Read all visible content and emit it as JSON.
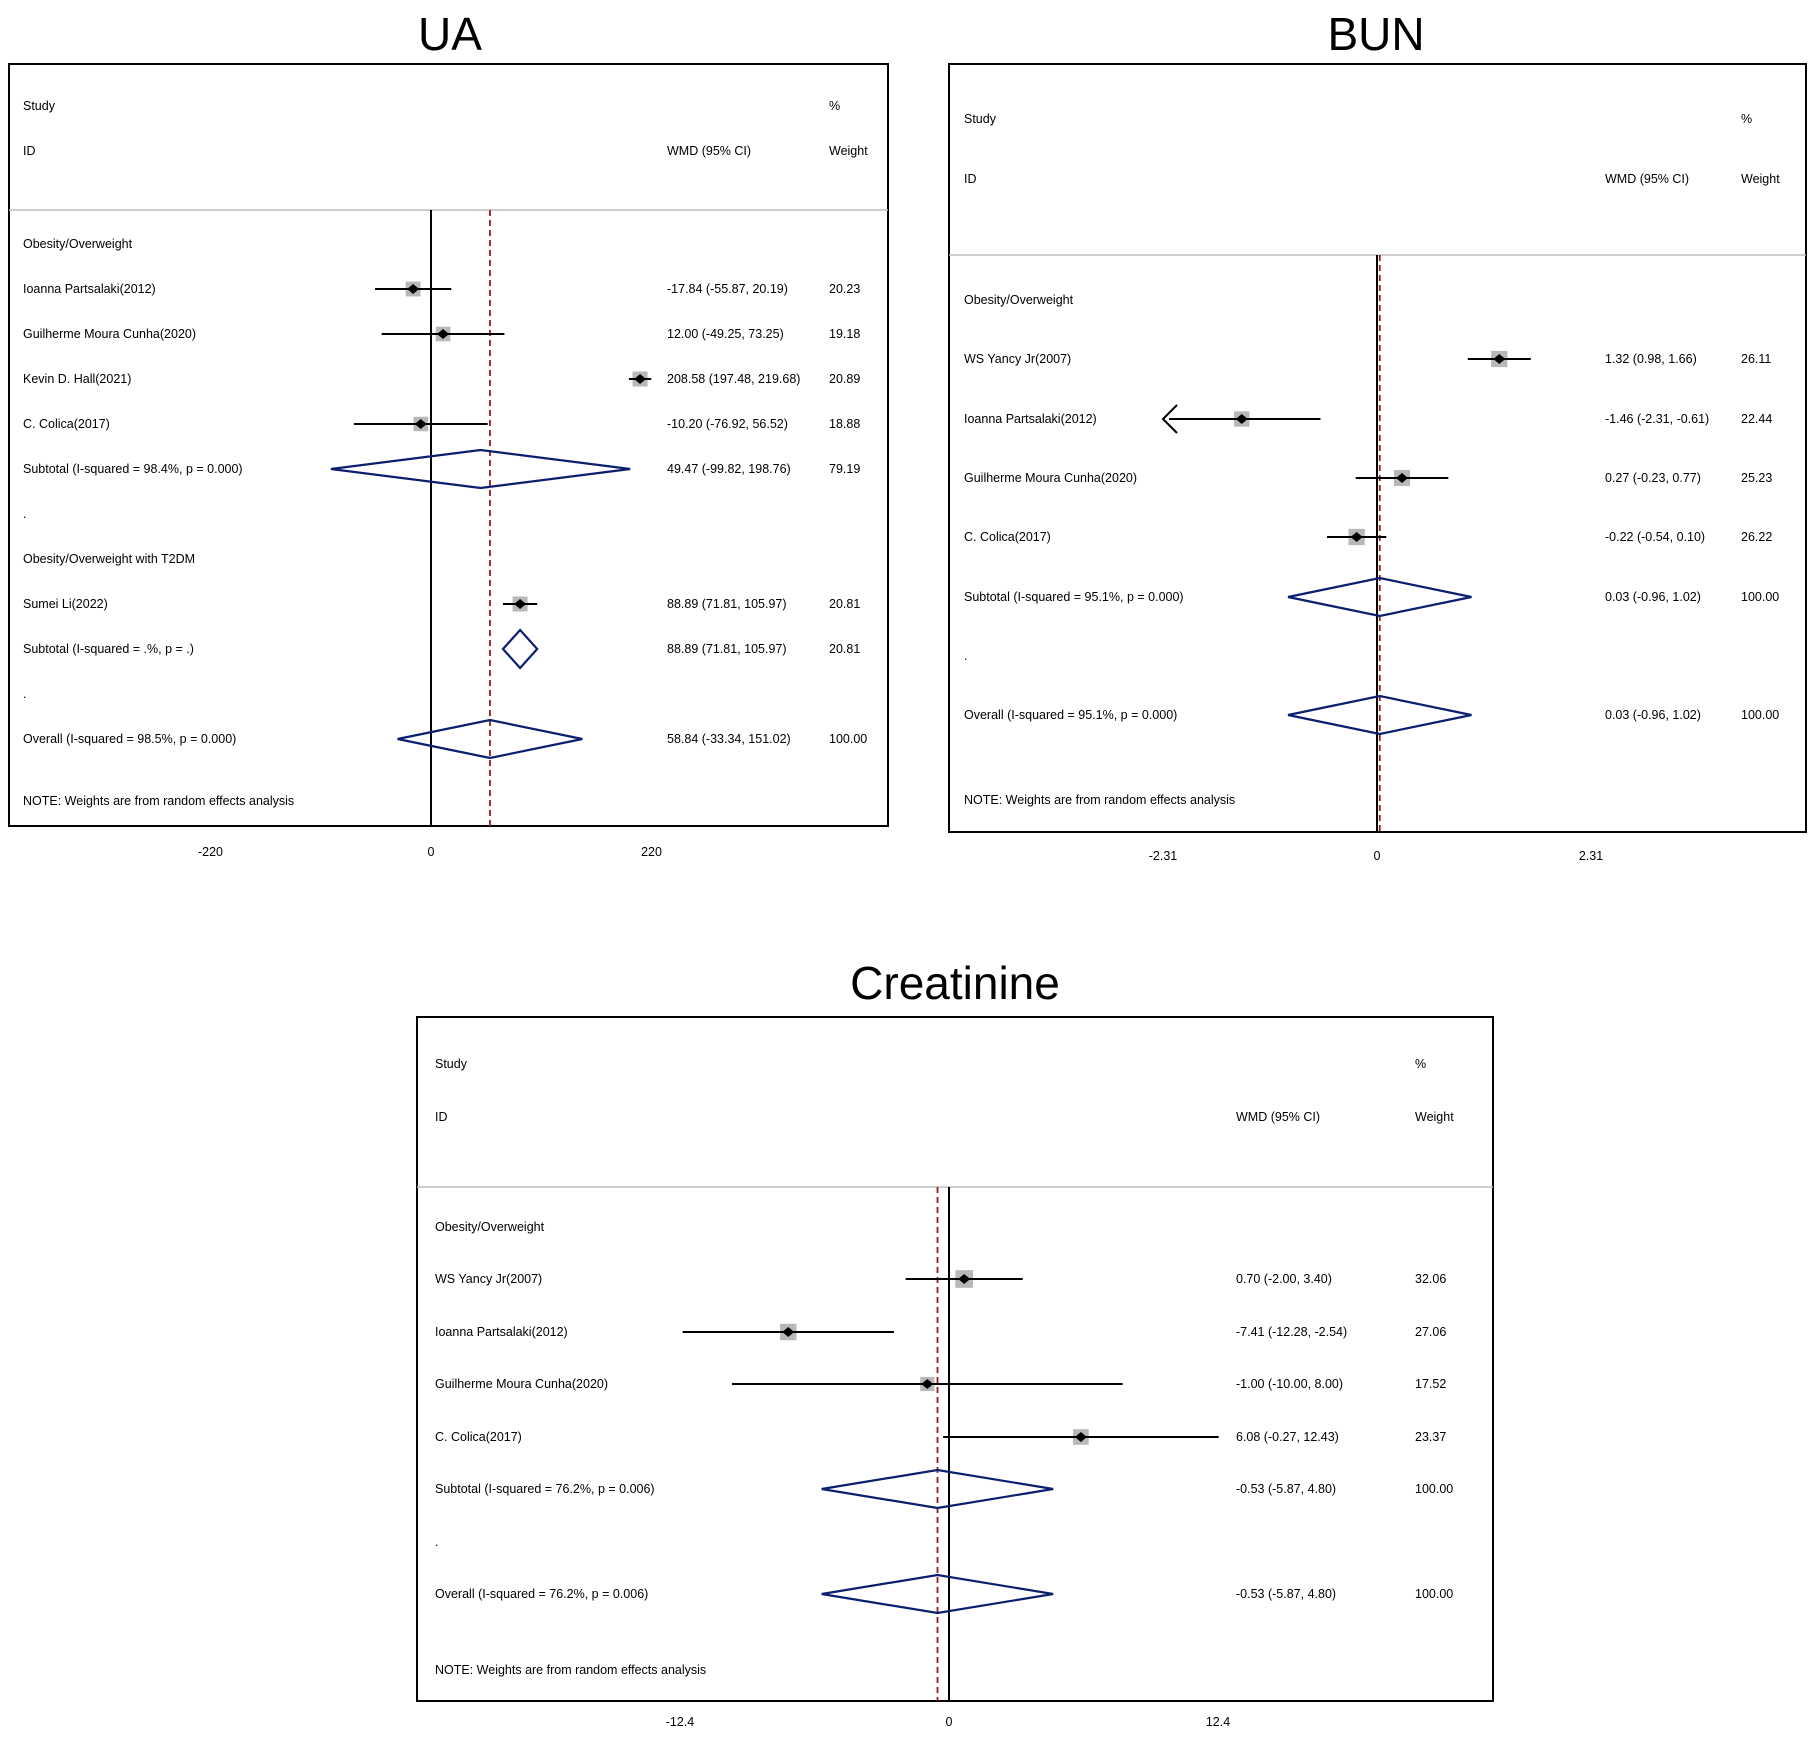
{
  "chart_data": [
    {
      "type": "forest",
      "title": "UA",
      "header": {
        "study": "Study",
        "id": "ID",
        "effect": "WMD (95% CI)",
        "pct": "%",
        "weight": "Weight"
      },
      "ticks": [
        -220,
        0,
        220
      ],
      "tick_labels": [
        "-220",
        "0",
        "220"
      ],
      "overall_effect": 58.84,
      "rows": [
        {
          "kind": "group",
          "label": "Obesity/Overweight"
        },
        {
          "kind": "study",
          "label": "Ioanna   Partsalaki(2012)",
          "est": -17.84,
          "lo": -55.87,
          "hi": 20.19,
          "ci": "-17.84 (-55.87, 20.19)",
          "weight": "20.23"
        },
        {
          "kind": "study",
          "label": "Guilherme Moura Cunha(2020)",
          "est": 12.0,
          "lo": -49.25,
          "hi": 73.25,
          "ci": "12.00 (-49.25, 73.25)",
          "weight": "19.18"
        },
        {
          "kind": "study",
          "label": "Kevin D. Hall(2021)",
          "est": 208.58,
          "lo": 197.48,
          "hi": 219.68,
          "ci": "208.58 (197.48, 219.68)",
          "weight": "20.89"
        },
        {
          "kind": "study",
          "label": "C. Colica(2017)",
          "est": -10.2,
          "lo": -76.92,
          "hi": 56.52,
          "ci": "-10.20 (-76.92, 56.52)",
          "weight": "18.88"
        },
        {
          "kind": "subtotal",
          "label": "Subtotal  (I-squared = 98.4%, p = 0.000)",
          "est": 49.47,
          "lo": -99.82,
          "hi": 198.76,
          "ci": "49.47 (-99.82, 198.76)",
          "weight": "79.19"
        },
        {
          "kind": "dot",
          "label": "."
        },
        {
          "kind": "group",
          "label": "Obesity/Overweight with T2DM"
        },
        {
          "kind": "study",
          "label": "Sumei Li(2022)",
          "est": 88.89,
          "lo": 71.81,
          "hi": 105.97,
          "ci": "88.89 (71.81, 105.97)",
          "weight": "20.81"
        },
        {
          "kind": "subtotal",
          "label": "Subtotal  (I-squared = .%, p = .)",
          "est": 88.89,
          "lo": 71.81,
          "hi": 105.97,
          "ci": "88.89 (71.81, 105.97)",
          "weight": "20.81"
        },
        {
          "kind": "dot",
          "label": "."
        },
        {
          "kind": "overall",
          "label": "Overall  (I-squared = 98.5%, p = 0.000)",
          "est": 58.84,
          "lo": -33.34,
          "hi": 151.02,
          "ci": "58.84 (-33.34, 151.02)",
          "weight": "100.00"
        }
      ],
      "note": "NOTE: Weights are from random effects analysis"
    },
    {
      "type": "forest",
      "title": "BUN",
      "header": {
        "study": "Study",
        "id": "ID",
        "effect": "WMD (95% CI)",
        "pct": "%",
        "weight": "Weight"
      },
      "ticks": [
        -2.31,
        0,
        2.31
      ],
      "tick_labels": [
        "-2.31",
        "0",
        "2.31"
      ],
      "overall_effect": 0.03,
      "rows": [
        {
          "kind": "group",
          "label": "Obesity/Overweight"
        },
        {
          "kind": "study",
          "label": "WS Yancy Jr(2007)",
          "est": 1.32,
          "lo": 0.98,
          "hi": 1.66,
          "ci": "1.32 (0.98, 1.66)",
          "weight": "26.11"
        },
        {
          "kind": "study",
          "label": "Ioanna   Partsalaki(2012)",
          "est": -1.46,
          "lo": -2.31,
          "hi": -0.61,
          "ci": "-1.46 (-2.31, -0.61)",
          "weight": "22.44",
          "arrow_left": true
        },
        {
          "kind": "study",
          "label": "Guilherme Moura Cunha(2020)",
          "est": 0.27,
          "lo": -0.23,
          "hi": 0.77,
          "ci": "0.27 (-0.23, 0.77)",
          "weight": "25.23"
        },
        {
          "kind": "study",
          "label": "C. Colica(2017)",
          "est": -0.22,
          "lo": -0.54,
          "hi": 0.1,
          "ci": "-0.22 (-0.54, 0.10)",
          "weight": "26.22"
        },
        {
          "kind": "subtotal",
          "label": "Subtotal  (I-squared = 95.1%, p = 0.000)",
          "est": 0.03,
          "lo": -0.96,
          "hi": 1.02,
          "ci": "0.03 (-0.96, 1.02)",
          "weight": "100.00"
        },
        {
          "kind": "dot",
          "label": "."
        },
        {
          "kind": "overall",
          "label": "Overall  (I-squared = 95.1%, p = 0.000)",
          "est": 0.03,
          "lo": -0.96,
          "hi": 1.02,
          "ci": "0.03 (-0.96, 1.02)",
          "weight": "100.00"
        }
      ],
      "note": "NOTE: Weights are from random effects analysis"
    },
    {
      "type": "forest",
      "title": "Creatinine",
      "header": {
        "study": "Study",
        "id": "ID",
        "effect": "WMD (95% CI)",
        "pct": "%",
        "weight": "Weight"
      },
      "ticks": [
        -12.4,
        0,
        12.4
      ],
      "tick_labels": [
        "-12.4",
        "0",
        "12.4"
      ],
      "overall_effect": -0.53,
      "rows": [
        {
          "kind": "group",
          "label": "Obesity/Overweight"
        },
        {
          "kind": "study",
          "label": "WS Yancy Jr(2007)",
          "est": 0.7,
          "lo": -2.0,
          "hi": 3.4,
          "ci": "0.70 (-2.00, 3.40)",
          "weight": "32.06"
        },
        {
          "kind": "study",
          "label": "Ioanna   Partsalaki(2012)",
          "est": -7.41,
          "lo": -12.28,
          "hi": -2.54,
          "ci": "-7.41 (-12.28, -2.54)",
          "weight": "27.06"
        },
        {
          "kind": "study",
          "label": "Guilherme Moura Cunha(2020)",
          "est": -1.0,
          "lo": -10.0,
          "hi": 8.0,
          "ci": "-1.00 (-10.00, 8.00)",
          "weight": "17.52"
        },
        {
          "kind": "study",
          "label": "C. Colica(2017)",
          "est": 6.08,
          "lo": -0.27,
          "hi": 12.43,
          "ci": "6.08 (-0.27, 12.43)",
          "weight": "23.37"
        },
        {
          "kind": "subtotal",
          "label": "Subtotal  (I-squared = 76.2%, p = 0.006)",
          "est": -0.53,
          "lo": -5.87,
          "hi": 4.8,
          "ci": "-0.53 (-5.87, 4.80)",
          "weight": "100.00"
        },
        {
          "kind": "dot",
          "label": "."
        },
        {
          "kind": "overall",
          "label": "Overall  (I-squared = 76.2%, p = 0.006)",
          "est": -0.53,
          "lo": -5.87,
          "hi": 4.8,
          "ci": "-0.53 (-5.87, 4.80)",
          "weight": "100.00"
        }
      ],
      "note": "NOTE: Weights are from random effects analysis"
    }
  ],
  "colors": {
    "diamond": "#0b1f6e",
    "effect_line": "#9b1b1b",
    "square": "#b8b8b8",
    "separator": "#bdbdbd",
    "ink": "#000000"
  }
}
